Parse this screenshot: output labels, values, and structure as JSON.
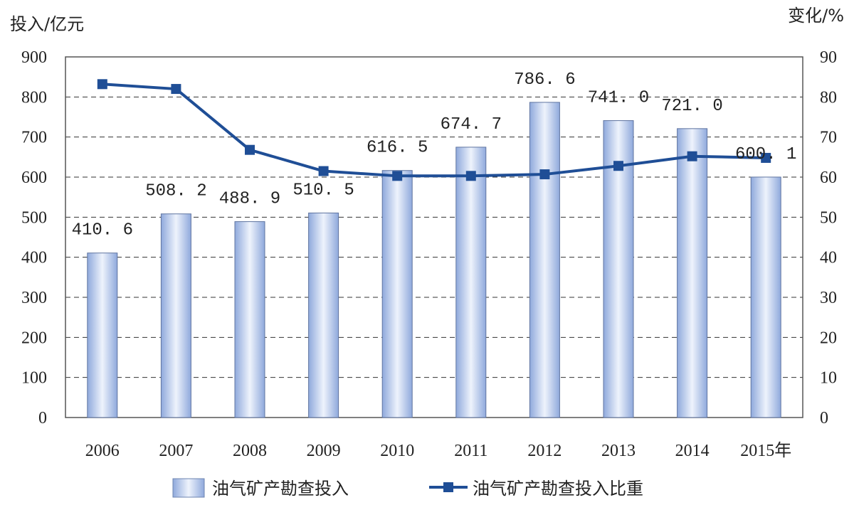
{
  "chart_data": {
    "type": "bar",
    "categories": [
      "2006",
      "2007",
      "2008",
      "2009",
      "2010",
      "2011",
      "2012",
      "2013",
      "2014",
      "2015年"
    ],
    "series": [
      {
        "name": "油气矿产勘查投入",
        "type": "bar",
        "axis": "left",
        "values": [
          410.6,
          508.2,
          488.9,
          510.5,
          616.5,
          674.7,
          786.6,
          741.0,
          721.0,
          600.1
        ],
        "labels": [
          "410. 6",
          "508. 2",
          "488. 9",
          "510. 5",
          "616. 5",
          "674. 7",
          "786. 6",
          "741. 0",
          "721. 0",
          "600. 1"
        ],
        "color": "#9db6e3"
      },
      {
        "name": "油气矿产勘查投入比重",
        "type": "line",
        "axis": "right",
        "values": [
          83.2,
          82.0,
          66.8,
          61.5,
          60.3,
          60.3,
          60.7,
          62.8,
          65.2,
          64.8
        ],
        "color": "#1f4e96"
      }
    ],
    "ylabel": "投入/亿元",
    "y2label": "变化/%",
    "ylim": [
      0,
      900
    ],
    "y2lim": [
      0,
      90
    ],
    "yticks": [
      "0",
      "100",
      "200",
      "300",
      "400",
      "500",
      "600",
      "700",
      "800",
      "900"
    ],
    "y2ticks": [
      "0",
      "10",
      "20",
      "30",
      "40",
      "50",
      "60",
      "70",
      "80",
      "90"
    ],
    "grid": true,
    "legend_position": "bottom"
  }
}
